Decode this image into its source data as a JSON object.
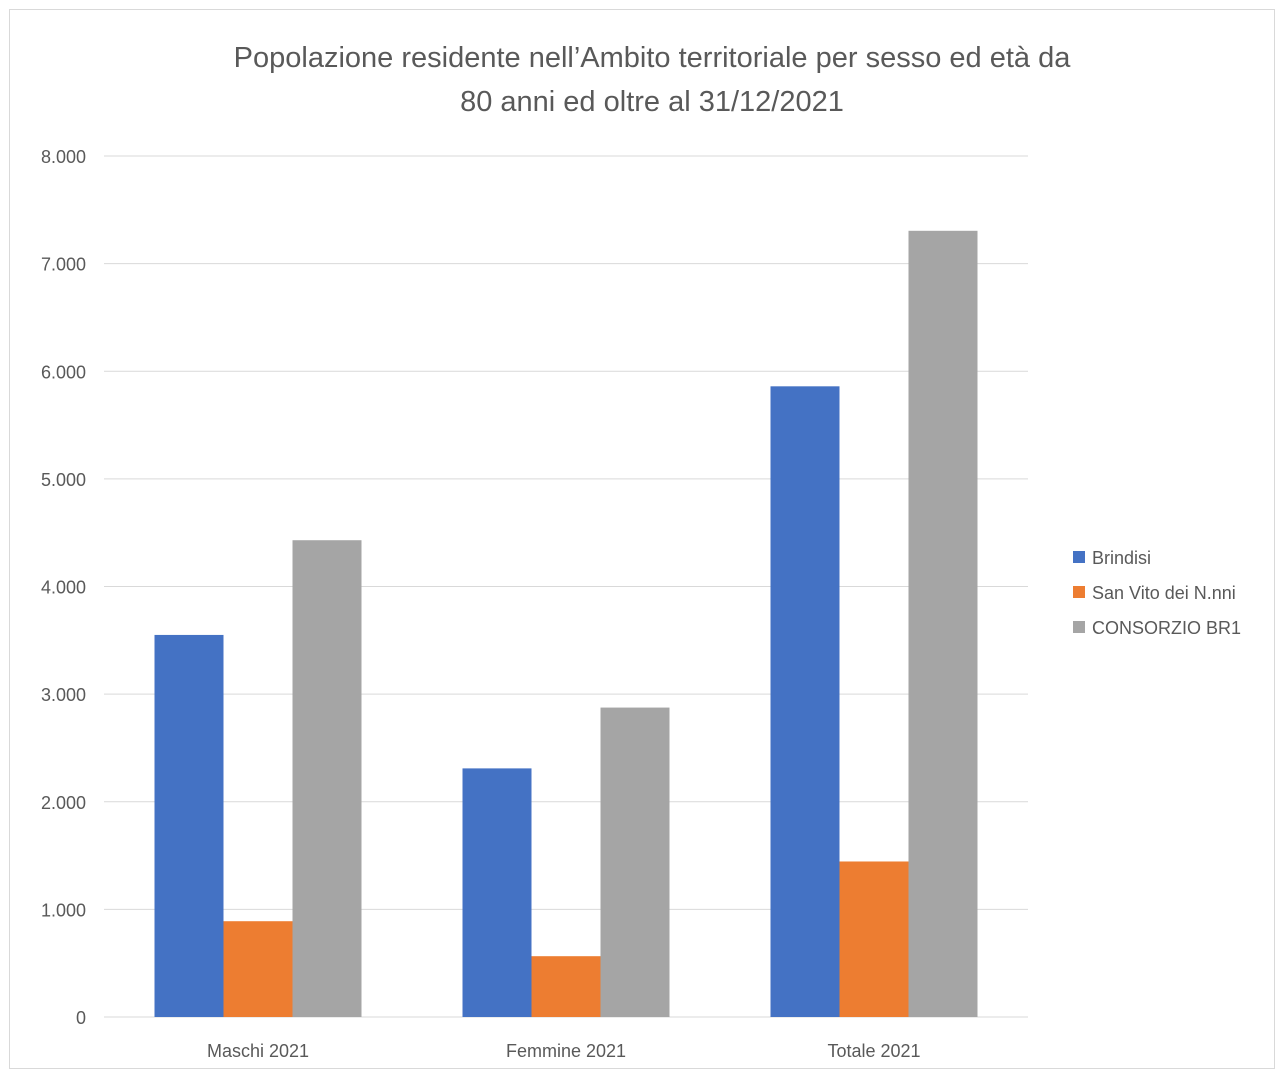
{
  "chart_data": {
    "type": "bar",
    "title": "Popolazione residente nell’Ambito territoriale per sesso ed età da 80 anni ed oltre al 31/12/2021",
    "title_lines": [
      "Popolazione residente nell’Ambito territoriale per sesso ed età da",
      "80 anni ed oltre al 31/12/2021"
    ],
    "xlabel": "",
    "ylabel": "",
    "categories": [
      "Maschi 2021",
      "Femmine 2021",
      "Totale 2021"
    ],
    "series": [
      {
        "name": "Brindisi",
        "color": "#4472C4",
        "values": [
          3550,
          2310,
          5860
        ]
      },
      {
        "name": "San Vito dei N.nni",
        "color": "#ED7D31",
        "values": [
          890,
          565,
          1445
        ]
      },
      {
        "name": "CONSORZIO BR1",
        "color": "#A5A5A5",
        "values": [
          4430,
          2875,
          7305
        ]
      }
    ],
    "ylim": [
      0,
      8000
    ],
    "yticks": [
      0,
      1000,
      2000,
      3000,
      4000,
      5000,
      6000,
      7000,
      8000
    ],
    "ytick_labels": [
      "0",
      "1.000",
      "2.000",
      "3.000",
      "4.000",
      "5.000",
      "6.000",
      "7.000",
      "8.000"
    ],
    "grid": true,
    "legend_position": "right"
  }
}
